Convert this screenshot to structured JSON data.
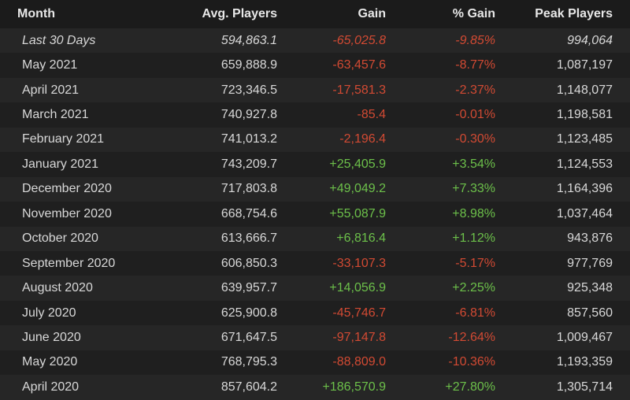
{
  "table": {
    "headers": [
      "Month",
      "Avg. Players",
      "Gain",
      "% Gain",
      "Peak Players"
    ],
    "rows": [
      [
        "Last 30 Days",
        "594,863.1",
        "-65,025.8",
        "-9.85%",
        "994,064"
      ],
      [
        "May 2021",
        "659,888.9",
        "-63,457.6",
        "-8.77%",
        "1,087,197"
      ],
      [
        "April 2021",
        "723,346.5",
        "-17,581.3",
        "-2.37%",
        "1,148,077"
      ],
      [
        "March 2021",
        "740,927.8",
        "-85.4",
        "-0.01%",
        "1,198,581"
      ],
      [
        "February 2021",
        "741,013.2",
        "-2,196.4",
        "-0.30%",
        "1,123,485"
      ],
      [
        "January 2021",
        "743,209.7",
        "+25,405.9",
        "+3.54%",
        "1,124,553"
      ],
      [
        "December 2020",
        "717,803.8",
        "+49,049.2",
        "+7.33%",
        "1,164,396"
      ],
      [
        "November 2020",
        "668,754.6",
        "+55,087.9",
        "+8.98%",
        "1,037,464"
      ],
      [
        "October 2020",
        "613,666.7",
        "+6,816.4",
        "+1.12%",
        "943,876"
      ],
      [
        "September 2020",
        "606,850.3",
        "-33,107.3",
        "-5.17%",
        "977,769"
      ],
      [
        "August 2020",
        "639,957.7",
        "+14,056.9",
        "+2.25%",
        "925,348"
      ],
      [
        "July 2020",
        "625,900.8",
        "-45,746.7",
        "-6.81%",
        "857,560"
      ],
      [
        "June 2020",
        "671,647.5",
        "-97,147.8",
        "-12.64%",
        "1,009,467"
      ],
      [
        "May 2020",
        "768,795.3",
        "-88,809.0",
        "-10.36%",
        "1,193,359"
      ],
      [
        "April 2020",
        "857,604.2",
        "+186,570.9",
        "+27.80%",
        "1,305,714"
      ]
    ]
  }
}
